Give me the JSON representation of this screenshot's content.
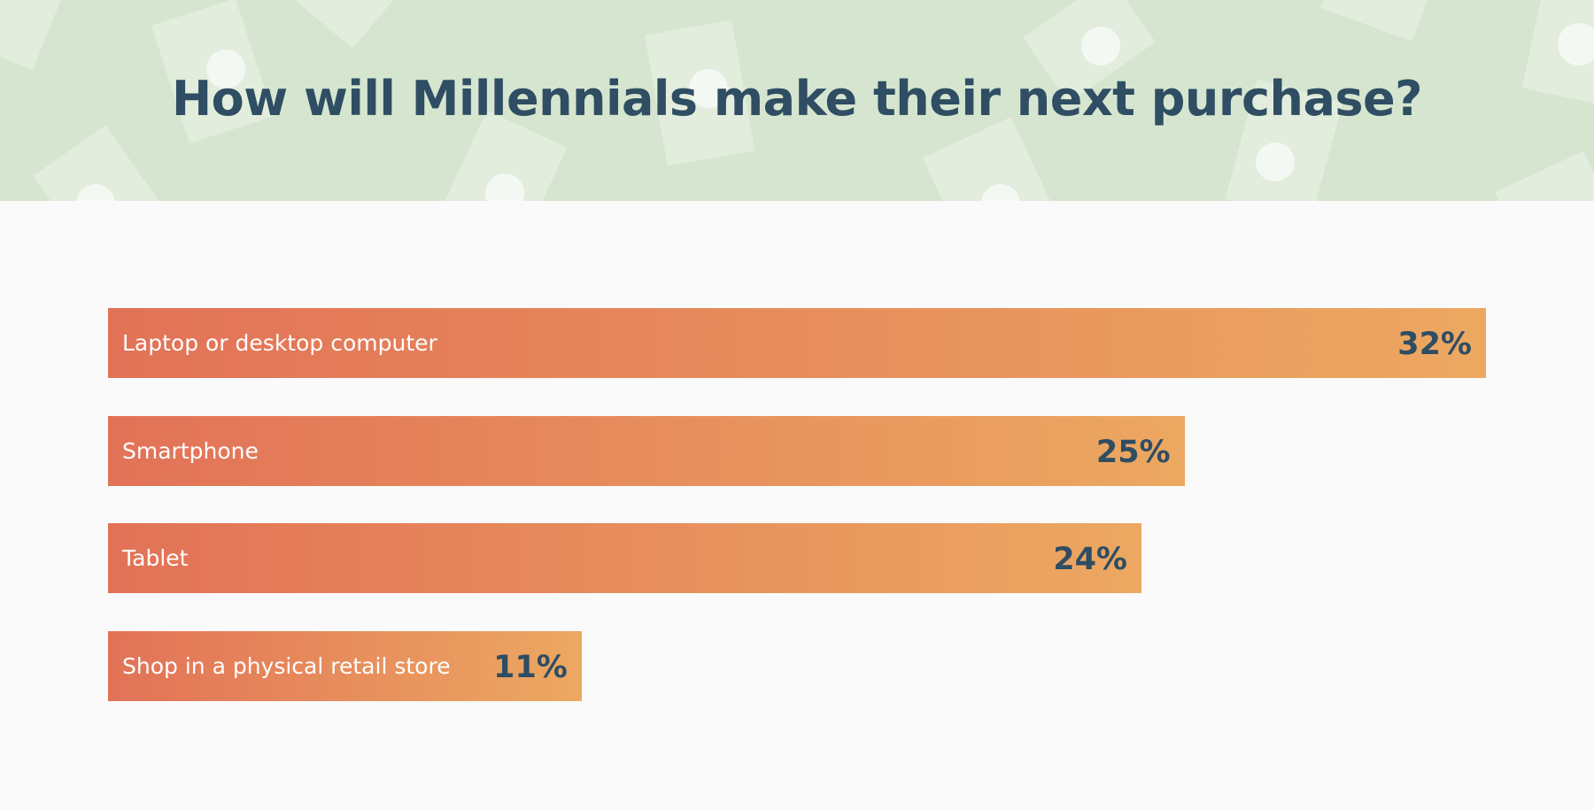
{
  "colors": {
    "banner": "#d5e5cf",
    "title": "#2f4d63",
    "bar_start": "#e27257",
    "bar_end": "#eca861",
    "label": "#ffffff",
    "value": "#2f4d63",
    "background": "#fafafa"
  },
  "chart_data": {
    "type": "bar",
    "orientation": "horizontal",
    "title": "How will Millennials make their next purchase?",
    "categories": [
      "Laptop or desktop computer",
      "Smartphone",
      "Tablet",
      "Shop in a physical retail store"
    ],
    "values": [
      32,
      25,
      24,
      11
    ],
    "value_labels": [
      "32%",
      "25%",
      "24%",
      "11%"
    ],
    "unit": "%",
    "grid": false,
    "legend": "none"
  }
}
